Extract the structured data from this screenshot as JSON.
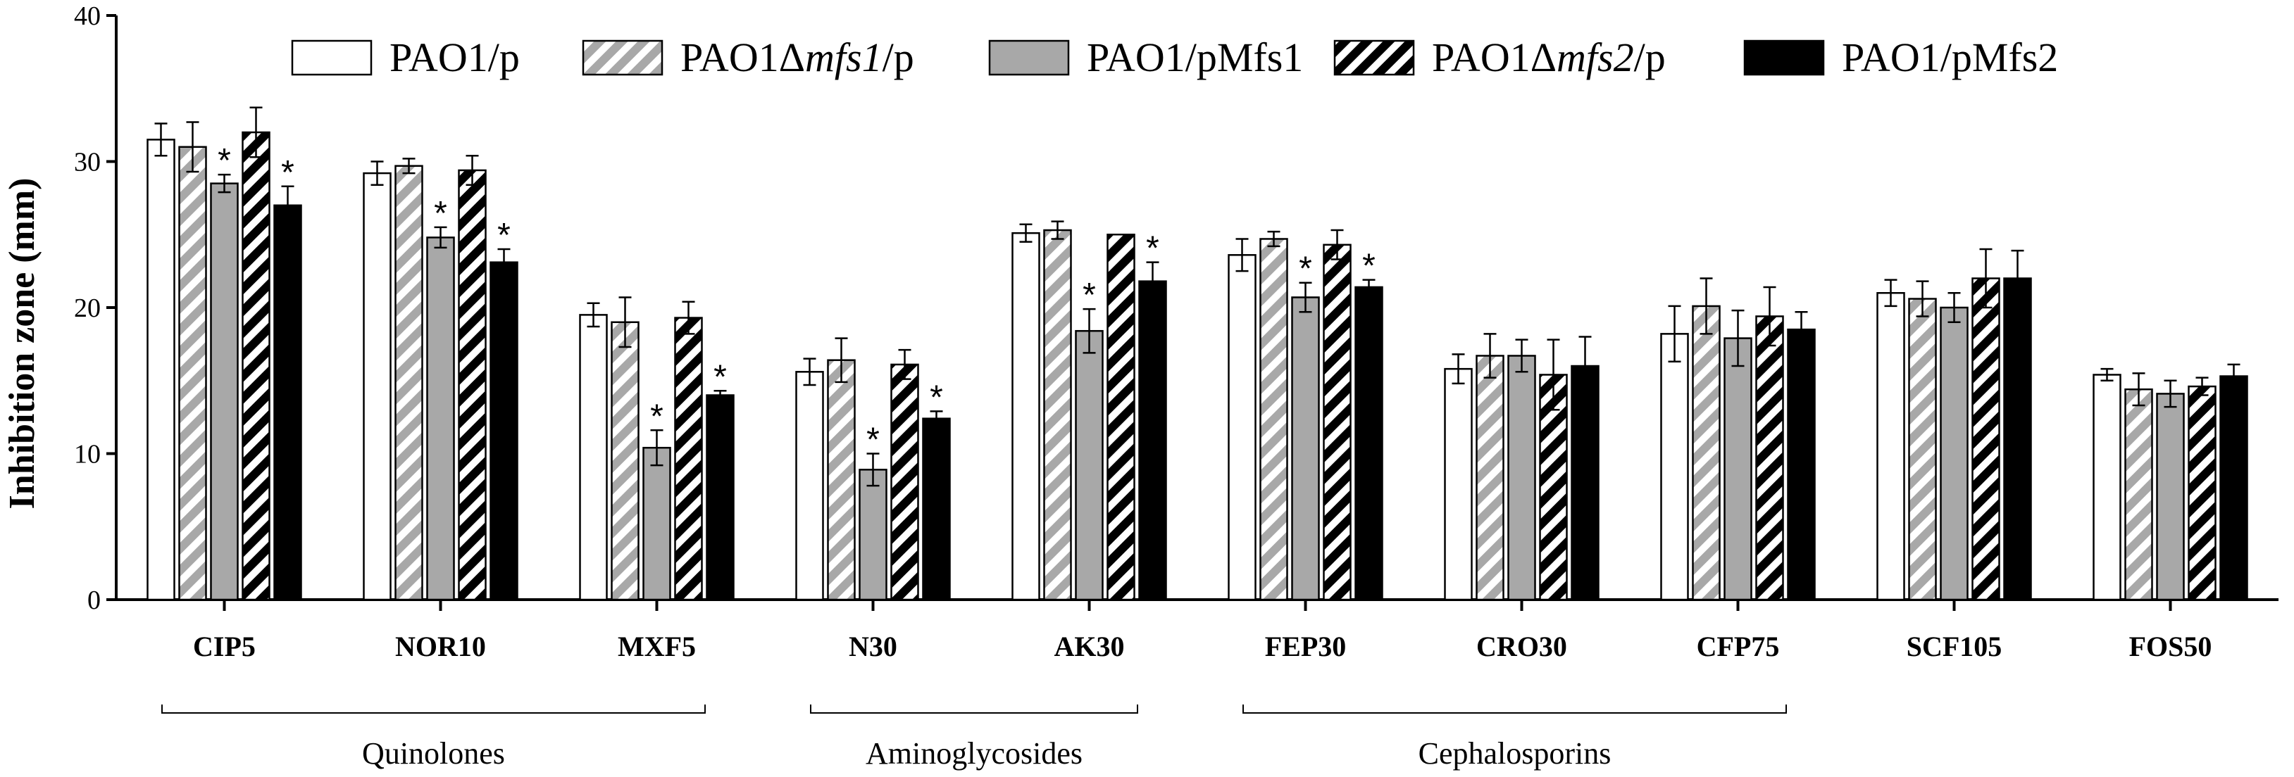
{
  "chart_data": {
    "type": "bar",
    "ylabel": "Inhibition zone (mm)",
    "xlabel": "",
    "ylim": [
      0,
      40
    ],
    "yticks": [
      "0",
      "10",
      "20",
      "30",
      "40"
    ],
    "categories": [
      "CIP5",
      "NOR10",
      "MXF5",
      "N30",
      "AK30",
      "FEP30",
      "CRO30",
      "CFP75",
      "SCF105",
      "FOS50"
    ],
    "series": [
      {
        "name": "PAO1/p",
        "name_parts": [
          {
            "text": "PAO1/p",
            "italic": false
          }
        ],
        "pattern": "white",
        "values": [
          31.5,
          29.2,
          19.5,
          15.6,
          25.1,
          23.6,
          15.8,
          18.2,
          21.0,
          15.4
        ],
        "errors": [
          1.1,
          0.8,
          0.8,
          0.9,
          0.6,
          1.1,
          1.0,
          1.9,
          0.9,
          0.4
        ],
        "significant": [
          false,
          false,
          false,
          false,
          false,
          false,
          false,
          false,
          false,
          false
        ]
      },
      {
        "name": "PAO1Δmfs1/p",
        "name_parts": [
          {
            "text": "PAO1Δ",
            "italic": false
          },
          {
            "text": "mfs1",
            "italic": true
          },
          {
            "text": "/p",
            "italic": false
          }
        ],
        "pattern": "gray-stripe",
        "values": [
          31.0,
          29.7,
          19.0,
          16.4,
          25.3,
          24.7,
          16.7,
          20.1,
          20.6,
          14.4
        ],
        "errors": [
          1.7,
          0.5,
          1.7,
          1.5,
          0.6,
          0.5,
          1.5,
          1.9,
          1.2,
          1.1
        ],
        "significant": [
          false,
          false,
          false,
          false,
          false,
          false,
          false,
          false,
          false,
          false
        ]
      },
      {
        "name": "PAO1/pMfs1",
        "name_parts": [
          {
            "text": "PAO1/pMfs1",
            "italic": false
          }
        ],
        "pattern": "gray",
        "values": [
          28.5,
          24.8,
          10.4,
          8.9,
          18.4,
          20.7,
          16.7,
          17.9,
          20.0,
          14.1
        ],
        "errors": [
          0.6,
          0.7,
          1.2,
          1.1,
          1.5,
          1.0,
          1.1,
          1.9,
          1.0,
          0.9
        ],
        "significant": [
          true,
          true,
          true,
          true,
          true,
          true,
          false,
          false,
          false,
          false
        ]
      },
      {
        "name": "PAO1Δmfs2/p",
        "name_parts": [
          {
            "text": "PAO1Δ",
            "italic": false
          },
          {
            "text": "mfs2",
            "italic": true
          },
          {
            "text": "/p",
            "italic": false
          }
        ],
        "pattern": "black-stripe",
        "values": [
          32.0,
          29.4,
          19.3,
          16.1,
          25.0,
          24.3,
          15.4,
          19.4,
          22.0,
          14.6
        ],
        "errors": [
          1.7,
          1.0,
          1.1,
          1.0,
          0.0,
          1.0,
          2.4,
          2.0,
          2.0,
          0.6
        ],
        "significant": [
          false,
          false,
          false,
          false,
          false,
          false,
          false,
          false,
          false,
          false
        ]
      },
      {
        "name": "PAO1/pMfs2",
        "name_parts": [
          {
            "text": "PAO1/pMfs2",
            "italic": false
          }
        ],
        "pattern": "black",
        "values": [
          27.0,
          23.1,
          14.0,
          12.4,
          21.8,
          21.4,
          16.0,
          18.5,
          22.0,
          15.3
        ],
        "errors": [
          1.3,
          0.9,
          0.3,
          0.5,
          1.3,
          0.5,
          2.0,
          1.2,
          1.9,
          0.8
        ],
        "significant": [
          true,
          true,
          true,
          true,
          true,
          true,
          false,
          false,
          false,
          false
        ]
      }
    ],
    "significance_marker": "*",
    "groups": [
      {
        "label": "Quinolones",
        "categories": [
          "CIP5",
          "NOR10",
          "MXF5"
        ]
      },
      {
        "label": "Aminoglycosides",
        "categories": [
          "N30",
          "AK30"
        ]
      },
      {
        "label": "Cephalosporins",
        "categories": [
          "FEP30",
          "CRO30",
          "CFP75"
        ]
      }
    ],
    "legend_position": "top",
    "grid": false
  }
}
